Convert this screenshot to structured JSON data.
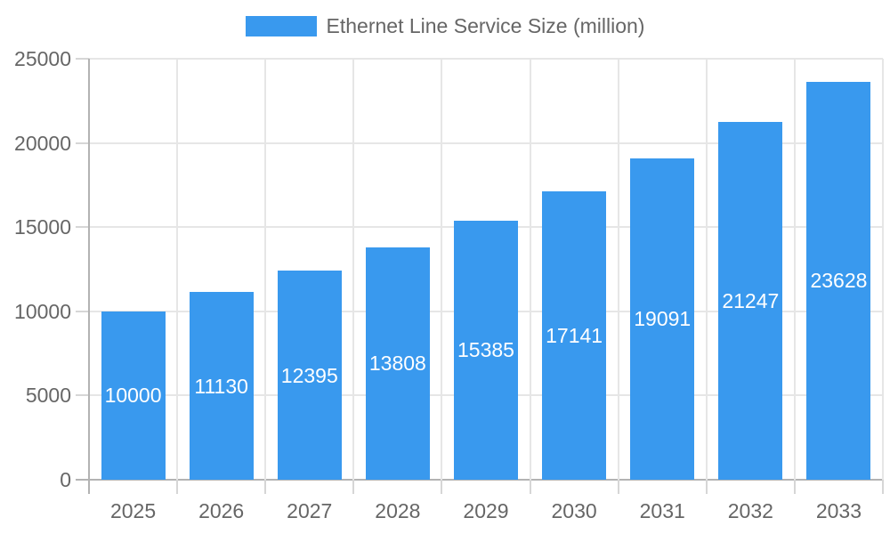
{
  "chart_data": {
    "type": "bar",
    "title": "",
    "legend": {
      "label": "Ethernet Line Service Size (million)",
      "position": "top"
    },
    "categories": [
      "2025",
      "2026",
      "2027",
      "2028",
      "2029",
      "2030",
      "2031",
      "2032",
      "2033"
    ],
    "series": [
      {
        "name": "Ethernet Line Service Size (million)",
        "values": [
          10000,
          11130,
          12395,
          13808,
          15385,
          17141,
          19091,
          21247,
          23628
        ]
      }
    ],
    "value_labels": [
      "10000",
      "11130",
      "12395",
      "13808",
      "15385",
      "17141",
      "19091",
      "21247",
      "23628"
    ],
    "value_label_position": "inside-center",
    "xlabel": "",
    "ylabel": "",
    "ylim": [
      0,
      25000
    ],
    "yticks": [
      0,
      5000,
      10000,
      15000,
      20000,
      25000
    ],
    "ytick_labels": [
      "0",
      "5000",
      "10000",
      "15000",
      "20000",
      "25000"
    ],
    "grid": "horizontal and vertical category dividers",
    "colors": {
      "bar": "#3999EE",
      "axis_text": "#666666",
      "value_text": "#FFFFFF",
      "grid_line": "#E6E6E6",
      "tick_line": "#D6D6D6",
      "axis_line": "#B3B3B3",
      "background": "#FFFFFF"
    }
  }
}
